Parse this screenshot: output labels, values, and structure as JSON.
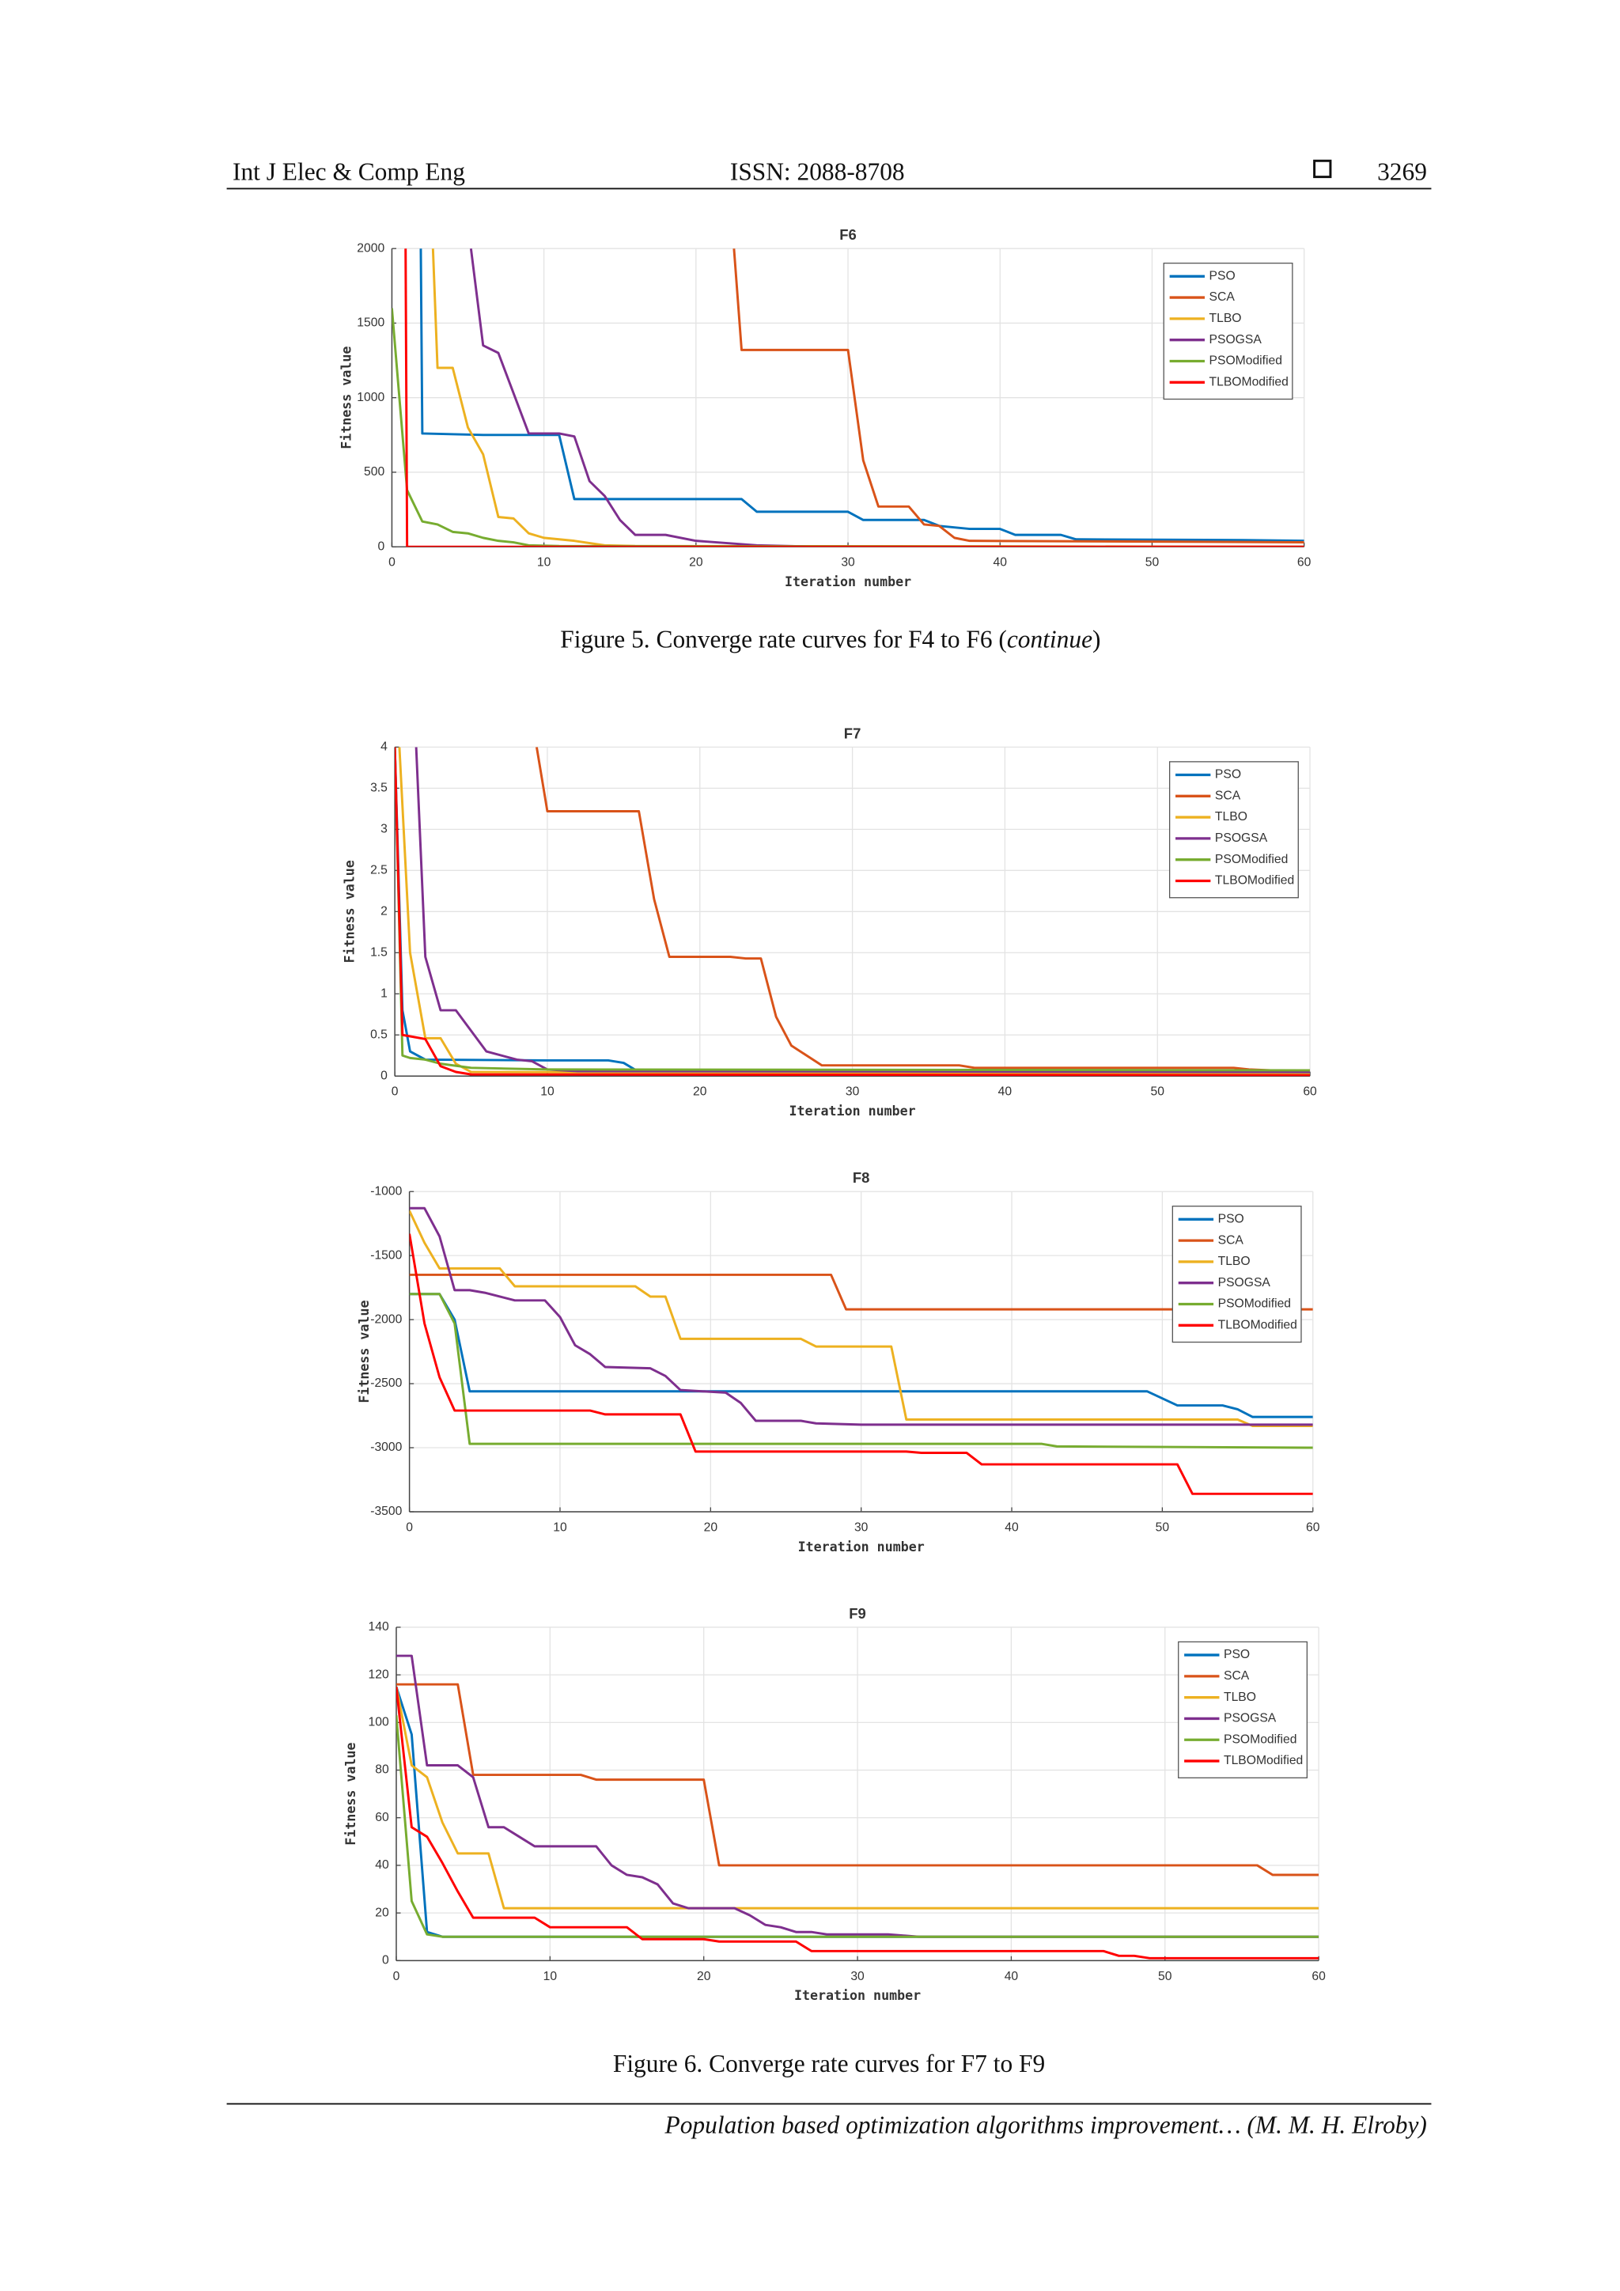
{
  "header": {
    "journal": "Int J Elec & Comp Eng",
    "issn": "ISSN: 2088-8708",
    "page": "3269"
  },
  "captions": [
    [
      "Figure 5. Converge rate curves for F4 to F6 (",
      "continue",
      ")"
    ],
    [
      "Figure 6. Converge rate curves for F7 to F9"
    ]
  ],
  "footer": "Population based optimization algorithms improvement… (M. M. H. Elroby)",
  "chart_data": [
    {
      "type": "line",
      "title": "F6",
      "x_label": "Iteration number",
      "y_label": "Fitness value",
      "grid": true,
      "legend": "upper right",
      "xlim": [
        0,
        60
      ],
      "xticks": [
        0,
        10,
        20,
        30,
        40,
        50,
        60
      ],
      "ylim": [
        0,
        2000
      ],
      "yticks": [
        0,
        500,
        1000,
        1500,
        2000
      ],
      "series": [
        {
          "name": "PSO",
          "color": "#0072bd",
          "x": [
            1.9,
            2,
            6,
            11,
            12,
            23,
            24,
            30,
            31,
            35,
            36,
            38,
            40,
            41,
            44,
            45,
            56,
            60
          ],
          "values": [
            2000,
            760,
            750,
            750,
            320,
            320,
            235,
            235,
            180,
            180,
            140,
            120,
            120,
            80,
            80,
            50,
            45,
            40
          ]
        },
        {
          "name": "SCA",
          "color": "#d95319",
          "x": [
            22.5,
            23,
            30,
            31,
            32,
            34,
            35,
            36,
            37,
            38,
            50,
            60
          ],
          "values": [
            2000,
            1320,
            1320,
            580,
            270,
            270,
            150,
            140,
            60,
            40,
            35,
            30
          ]
        },
        {
          "name": "TLBO",
          "color": "#edb120",
          "x": [
            2.7,
            3,
            4,
            5,
            6,
            7,
            8,
            9,
            10,
            12,
            14,
            16,
            60
          ],
          "values": [
            2000,
            1200,
            1200,
            800,
            620,
            200,
            190,
            90,
            60,
            40,
            10,
            5,
            0
          ]
        },
        {
          "name": "PSOGSA",
          "color": "#7e2f8e",
          "x": [
            5.2,
            6,
            7,
            9,
            11,
            12,
            13,
            14,
            15,
            16,
            18,
            20,
            24,
            28,
            60
          ],
          "values": [
            2000,
            1350,
            1300,
            760,
            760,
            740,
            440,
            340,
            180,
            80,
            80,
            40,
            10,
            0,
            0
          ]
        },
        {
          "name": "PSOModified",
          "color": "#77ac30",
          "x": [
            0,
            1,
            2,
            3,
            4,
            5,
            6,
            7,
            8,
            9,
            11,
            60
          ],
          "values": [
            1600,
            380,
            170,
            150,
            100,
            90,
            60,
            40,
            30,
            10,
            5,
            0
          ]
        },
        {
          "name": "TLBOModified",
          "color": "#ff0000",
          "x": [
            0.9,
            1,
            60
          ],
          "values": [
            2000,
            0,
            0
          ]
        }
      ]
    },
    {
      "type": "line",
      "title": "F7",
      "x_label": "Iteration number",
      "y_label": "Fitness value",
      "grid": true,
      "legend": "upper right",
      "xlim": [
        0,
        60
      ],
      "xticks": [
        0,
        10,
        20,
        30,
        40,
        50,
        60
      ],
      "ylim": [
        0,
        4
      ],
      "yticks": [
        0,
        0.5,
        1,
        1.5,
        2,
        2.5,
        3,
        3.5,
        4
      ],
      "series": [
        {
          "name": "PSO",
          "color": "#0072bd",
          "x": [
            0,
            0.5,
            1,
            2,
            10,
            14,
            15,
            16,
            60
          ],
          "values": [
            4,
            0.8,
            0.3,
            0.2,
            0.19,
            0.19,
            0.16,
            0.05,
            0.04
          ]
        },
        {
          "name": "SCA",
          "color": "#d95319",
          "x": [
            9.3,
            10,
            16,
            17,
            18,
            22,
            23,
            24,
            25,
            26,
            27,
            28,
            37,
            38,
            55,
            56,
            60
          ],
          "values": [
            4,
            3.22,
            3.22,
            2.15,
            1.45,
            1.45,
            1.43,
            1.43,
            0.72,
            0.37,
            0.25,
            0.13,
            0.13,
            0.1,
            0.1,
            0.08,
            0.05
          ]
        },
        {
          "name": "TLBO",
          "color": "#edb120",
          "x": [
            0.3,
            1,
            2,
            3,
            4,
            5,
            60
          ],
          "values": [
            4,
            1.5,
            0.46,
            0.46,
            0.15,
            0.05,
            0.02
          ]
        },
        {
          "name": "PSOGSA",
          "color": "#7e2f8e",
          "x": [
            1.4,
            2,
            3,
            4,
            5,
            6,
            8,
            9,
            10,
            12,
            60
          ],
          "values": [
            4,
            1.45,
            0.8,
            0.8,
            0.55,
            0.3,
            0.2,
            0.18,
            0.08,
            0.06,
            0.05
          ]
        },
        {
          "name": "PSOModified",
          "color": "#77ac30",
          "x": [
            0,
            0.5,
            1,
            2,
            3,
            5,
            10,
            60
          ],
          "values": [
            4,
            0.25,
            0.22,
            0.2,
            0.15,
            0.1,
            0.08,
            0.07
          ]
        },
        {
          "name": "TLBOModified",
          "color": "#ff0000",
          "x": [
            0,
            0.5,
            2,
            3,
            4,
            5,
            60
          ],
          "values": [
            4,
            0.5,
            0.45,
            0.12,
            0.05,
            0.02,
            0.01
          ]
        }
      ]
    },
    {
      "type": "line",
      "title": "F8",
      "x_label": "Iteration number",
      "y_label": "Fitness value",
      "grid": true,
      "legend": "upper right",
      "xlim": [
        0,
        60
      ],
      "xticks": [
        0,
        10,
        20,
        30,
        40,
        50,
        60
      ],
      "ylim": [
        -3500,
        -1000
      ],
      "yticks": [
        -3500,
        -3000,
        -2500,
        -2000,
        -1500,
        -1000
      ],
      "series": [
        {
          "name": "PSO",
          "color": "#0072bd",
          "x": [
            0,
            2,
            3,
            4,
            49,
            51,
            54,
            55,
            56,
            58,
            60
          ],
          "values": [
            -1800,
            -1800,
            -2000,
            -2560,
            -2560,
            -2670,
            -2670,
            -2700,
            -2760,
            -2760,
            -2760
          ]
        },
        {
          "name": "SCA",
          "color": "#d95319",
          "x": [
            0,
            28,
            29,
            60
          ],
          "values": [
            -1650,
            -1650,
            -1920,
            -1920
          ]
        },
        {
          "name": "TLBO",
          "color": "#edb120",
          "x": [
            0,
            1,
            2,
            6,
            7,
            15,
            16,
            17,
            18,
            26,
            27,
            32,
            33,
            55,
            56,
            60
          ],
          "values": [
            -1150,
            -1400,
            -1600,
            -1600,
            -1740,
            -1740,
            -1820,
            -1820,
            -2150,
            -2150,
            -2210,
            -2210,
            -2780,
            -2780,
            -2830,
            -2830
          ]
        },
        {
          "name": "PSOGSA",
          "color": "#7e2f8e",
          "x": [
            0,
            1,
            2,
            3,
            4,
            5,
            6,
            7,
            9,
            10,
            11,
            12,
            13,
            16,
            17,
            18,
            21,
            22,
            23,
            26,
            27,
            30,
            60
          ],
          "values": [
            -1130,
            -1130,
            -1350,
            -1770,
            -1770,
            -1790,
            -1820,
            -1850,
            -1850,
            -1980,
            -2200,
            -2270,
            -2370,
            -2380,
            -2440,
            -2550,
            -2570,
            -2650,
            -2790,
            -2790,
            -2810,
            -2820,
            -2820
          ]
        },
        {
          "name": "PSOModified",
          "color": "#77ac30",
          "x": [
            0,
            2,
            3,
            4,
            42,
            43,
            60
          ],
          "values": [
            -1800,
            -1800,
            -2030,
            -2970,
            -2970,
            -2990,
            -3000
          ]
        },
        {
          "name": "TLBOModified",
          "color": "#ff0000",
          "x": [
            0,
            1,
            2,
            3,
            12,
            13,
            18,
            19,
            33,
            34,
            37,
            38,
            51,
            52,
            60
          ],
          "values": [
            -1330,
            -2030,
            -2450,
            -2710,
            -2710,
            -2740,
            -2740,
            -3030,
            -3030,
            -3040,
            -3040,
            -3130,
            -3130,
            -3360,
            -3360
          ]
        }
      ]
    },
    {
      "type": "line",
      "title": "F9",
      "x_label": "Iteration number",
      "y_label": "Fitness value",
      "grid": true,
      "legend": "upper right",
      "xlim": [
        0,
        60
      ],
      "xticks": [
        0,
        10,
        20,
        30,
        40,
        50,
        60
      ],
      "ylim": [
        0,
        140
      ],
      "yticks": [
        0,
        20,
        40,
        60,
        80,
        100,
        120,
        140
      ],
      "series": [
        {
          "name": "PSO",
          "color": "#0072bd",
          "x": [
            0,
            1,
            2,
            3,
            60
          ],
          "values": [
            115,
            95,
            12,
            10,
            10
          ]
        },
        {
          "name": "SCA",
          "color": "#d95319",
          "x": [
            0,
            4,
            5,
            12,
            13,
            20,
            21,
            56,
            57,
            60
          ],
          "values": [
            116,
            116,
            78,
            78,
            76,
            76,
            40,
            40,
            36,
            36
          ]
        },
        {
          "name": "TLBO",
          "color": "#edb120",
          "x": [
            0,
            1,
            2,
            3,
            4,
            6,
            7,
            60
          ],
          "values": [
            115,
            82,
            77,
            58,
            45,
            45,
            22,
            22
          ]
        },
        {
          "name": "PSOGSA",
          "color": "#7e2f8e",
          "x": [
            0,
            1,
            2,
            4,
            5,
            6,
            7,
            8,
            9,
            13,
            14,
            15,
            16,
            17,
            18,
            19,
            22,
            23,
            24,
            25,
            26,
            27,
            28,
            32,
            34,
            60
          ],
          "values": [
            128,
            128,
            82,
            82,
            77,
            56,
            56,
            52,
            48,
            48,
            40,
            36,
            35,
            32,
            24,
            22,
            22,
            19,
            15,
            14,
            12,
            12,
            11,
            11,
            10,
            10
          ]
        },
        {
          "name": "PSOModified",
          "color": "#77ac30",
          "x": [
            0,
            1,
            2,
            3,
            60
          ],
          "values": [
            103,
            25,
            11,
            10,
            10
          ]
        },
        {
          "name": "TLBOModified",
          "color": "#ff0000",
          "x": [
            0,
            1,
            2,
            3,
            4,
            5,
            9,
            10,
            15,
            16,
            20,
            21,
            26,
            27,
            46,
            47,
            48,
            49,
            60
          ],
          "values": [
            115,
            56,
            52,
            41,
            29,
            18,
            18,
            14,
            14,
            9,
            9,
            8,
            8,
            4,
            4,
            2,
            2,
            1,
            1
          ]
        }
      ]
    }
  ]
}
